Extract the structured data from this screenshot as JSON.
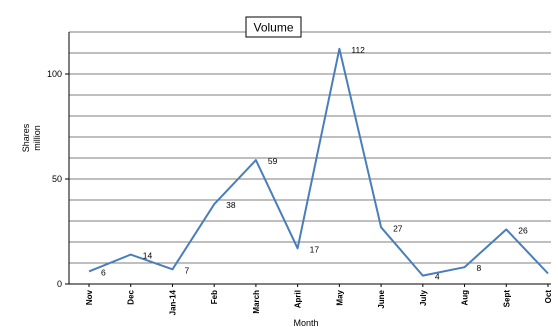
{
  "chart_data": {
    "type": "line",
    "title": "Volume",
    "xlabel": "Month",
    "ylabel_line1": "Shares",
    "ylabel_line2": "million",
    "categories": [
      "Nov",
      "Dec",
      "Jan-14",
      "Feb",
      "March",
      "April",
      "May",
      "June",
      "July",
      "Aug",
      "Sept",
      "Oct"
    ],
    "series": [
      {
        "values": [
          6,
          14,
          7,
          38,
          59,
          17,
          112,
          27,
          4,
          8,
          26,
          5
        ]
      }
    ],
    "data_labels": [
      "6",
      "14",
      "7",
      "38",
      "59",
      "17",
      "112",
      "27",
      "4",
      "8",
      "26",
      ""
    ],
    "ylim": [
      0,
      120
    ],
    "yticks": [
      0,
      50,
      100
    ],
    "grid": true,
    "line_color": "#4a7ebb"
  }
}
